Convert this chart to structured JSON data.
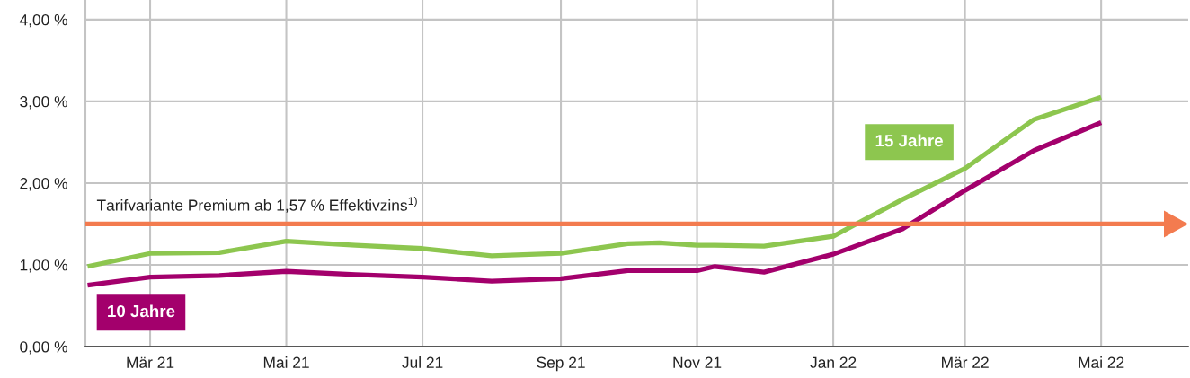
{
  "chart_data": {
    "type": "line",
    "x": [
      "2021-02-01",
      "2021-03-01",
      "2021-04-01",
      "2021-05-01",
      "2021-06-01",
      "2021-07-01",
      "2021-08-01",
      "2021-09-01",
      "2021-10-01",
      "2021-10-15",
      "2021-11-01",
      "2021-11-09",
      "2021-12-01",
      "2022-01-01",
      "2022-02-01",
      "2022-03-01",
      "2022-04-01",
      "2022-05-01"
    ],
    "xlim": [
      "2021-01-31",
      "2022-06-09"
    ],
    "xticks": [
      {
        "value": "2021-03-01",
        "label": "Mär 21"
      },
      {
        "value": "2021-05-01",
        "label": "Mai 21"
      },
      {
        "value": "2021-07-01",
        "label": "Jul 21"
      },
      {
        "value": "2021-09-01",
        "label": "Sep 21"
      },
      {
        "value": "2021-11-01",
        "label": "Nov 21"
      },
      {
        "value": "2022-01-01",
        "label": "Jan 22"
      },
      {
        "value": "2022-03-01",
        "label": "Mär 22"
      },
      {
        "value": "2022-05-01",
        "label": "Mai 22"
      }
    ],
    "ylim": [
      0,
      4.24
    ],
    "yticks": [
      {
        "value": 0,
        "label": "0,00 %"
      },
      {
        "value": 1,
        "label": "1,00 %"
      },
      {
        "value": 2,
        "label": "2,00 %"
      },
      {
        "value": 3,
        "label": "3,00 %"
      },
      {
        "value": 4,
        "label": "4,00 %"
      }
    ],
    "series": [
      {
        "name": "15 Jahre",
        "color": "#8dc64f",
        "values": [
          0.98,
          1.14,
          1.15,
          1.29,
          1.24,
          1.2,
          1.11,
          1.14,
          1.26,
          1.27,
          1.24,
          1.24,
          1.23,
          1.35,
          1.8,
          2.18,
          2.78,
          3.05
        ]
      },
      {
        "name": "10 Jahre",
        "color": "#a3006c",
        "values": [
          0.75,
          0.85,
          0.87,
          0.92,
          0.88,
          0.85,
          0.8,
          0.83,
          0.93,
          0.93,
          0.93,
          0.98,
          0.91,
          1.13,
          1.44,
          1.91,
          2.4,
          2.74
        ]
      }
    ],
    "ref_lines": [
      {
        "axis": "y",
        "value": 1.5,
        "label": "Tarifvariante Premium ab 1,57 % Effektivzins$^{1)}$",
        "color": "#f37b4f"
      }
    ],
    "grid": true
  }
}
